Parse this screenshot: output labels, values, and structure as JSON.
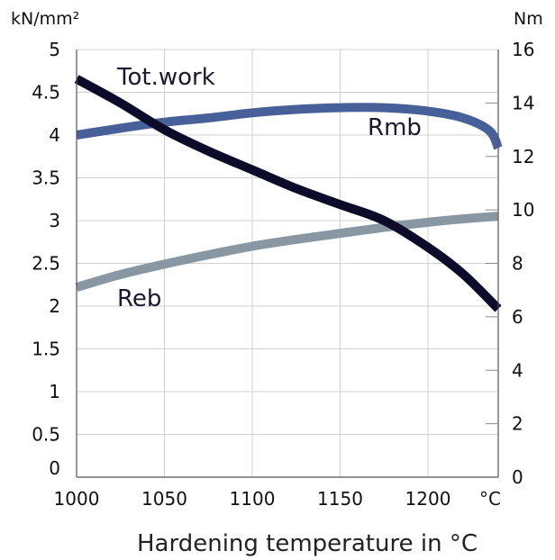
{
  "chart_data": {
    "type": "line",
    "xlabel": "Hardening temperature in °C",
    "x_unit": "°C",
    "y_left_unit": "kN/mm²",
    "y_right_unit": "Nm",
    "xlim": [
      1000,
      1240
    ],
    "ylim_left": [
      0,
      5
    ],
    "ylim_right": [
      0,
      16
    ],
    "x_ticks": [
      "1000",
      "1050",
      "1100",
      "1150",
      "1200"
    ],
    "y_left_ticks": [
      "0",
      "0.5",
      "1",
      "1.5",
      "2",
      "2.5",
      "3",
      "3.5",
      "4",
      "4.5",
      "5"
    ],
    "y_right_ticks": [
      "0",
      "2",
      "4",
      "6",
      "8",
      "10",
      "12",
      "14",
      "16"
    ],
    "grid": true,
    "series": [
      {
        "name": "Tot.work",
        "axis": "right",
        "color": "#0c0c2a",
        "x": [
          1000,
          1025,
          1050,
          1075,
          1100,
          1125,
          1150,
          1175,
          1200,
          1220,
          1240
        ],
        "y": [
          14.9,
          14.0,
          13.0,
          12.2,
          11.5,
          10.8,
          10.2,
          9.6,
          8.6,
          7.6,
          6.3
        ]
      },
      {
        "name": "Rmb",
        "axis": "left",
        "color": "#48609a",
        "x": [
          1000,
          1025,
          1050,
          1075,
          1100,
          1125,
          1150,
          1175,
          1200,
          1220,
          1235,
          1240
        ],
        "y": [
          4.0,
          4.08,
          4.15,
          4.2,
          4.26,
          4.3,
          4.32,
          4.32,
          4.28,
          4.2,
          4.05,
          3.85
        ]
      },
      {
        "name": "Reb",
        "axis": "left",
        "color": "#8897a2",
        "x": [
          1000,
          1025,
          1050,
          1075,
          1100,
          1125,
          1150,
          1175,
          1200,
          1220,
          1240
        ],
        "y": [
          2.22,
          2.37,
          2.49,
          2.6,
          2.7,
          2.78,
          2.85,
          2.92,
          2.98,
          3.02,
          3.05
        ]
      }
    ]
  }
}
